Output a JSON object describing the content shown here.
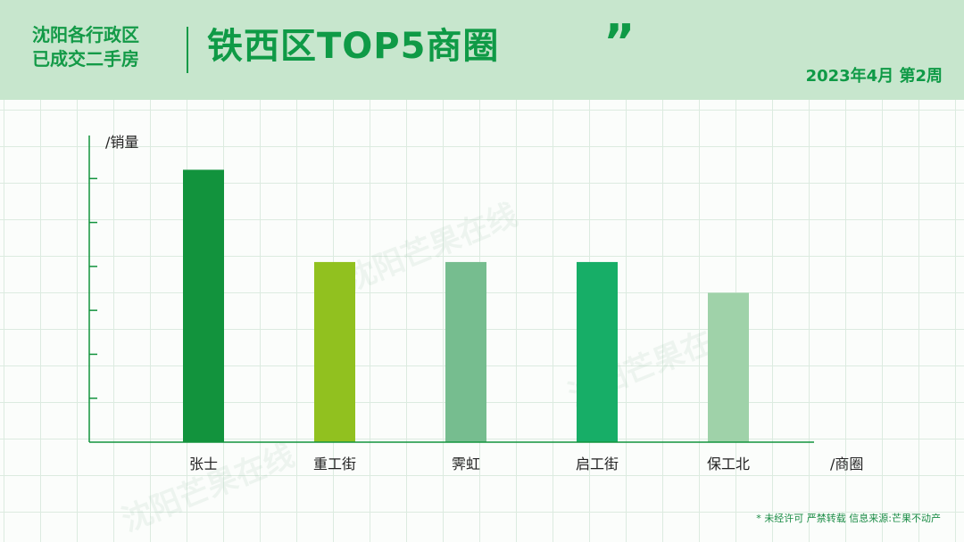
{
  "header": {
    "subtitle_line1": "沈阳各行政区",
    "subtitle_line2": "已成交二手房",
    "title": "铁西区TOP5商圈",
    "quote_mark": "”",
    "date": "2023年4月  第2周"
  },
  "watermark": "沈阳芒果在线",
  "chart_data": {
    "type": "bar",
    "ylabel": "/销量",
    "xlabel": "/商圈",
    "categories": [
      "张士",
      "重工街",
      "霁虹",
      "启工街",
      "保工北"
    ],
    "values": [
      6.2,
      4.1,
      4.1,
      4.1,
      3.4
    ],
    "ylim": [
      0,
      7
    ],
    "grid": true,
    "colors": [
      "#12933d",
      "#91c11f",
      "#76bd8f",
      "#17ae67",
      "#9fd2a9"
    ]
  },
  "footnote": "* 未经许可 严禁转载 信息来源:芒果不动产"
}
